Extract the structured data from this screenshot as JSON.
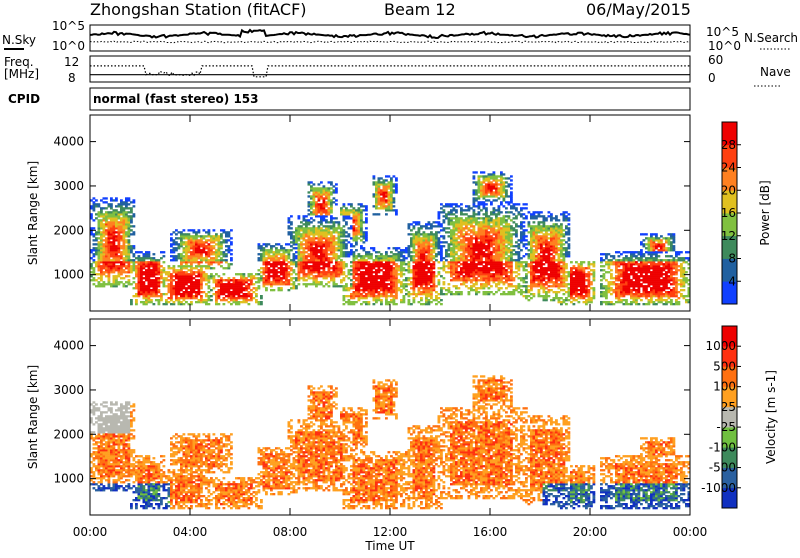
{
  "header": {
    "station": "Zhongshan Station (fitACF)",
    "beam": "Beam 12",
    "date": "06/May/2015"
  },
  "params_panel": {
    "nsky_label": "N.Sky",
    "nsearch_label": "N.Search",
    "noise_ticks_left": [
      "10^5",
      "10^0"
    ],
    "noise_ticks_right": [
      "10^5",
      "10^0"
    ],
    "freq_label_line1": "Freq.",
    "freq_label_line2": "[MHz]",
    "freq_ticks": [
      "12",
      "8"
    ],
    "nave_label": "Nave",
    "nave_ticks": [
      "60",
      "0"
    ],
    "cpid_label": "CPID",
    "cpid_text": "normal (fast stereo) 153"
  },
  "chart_data": [
    {
      "type": "heatmap",
      "name": "power",
      "xlabel": "",
      "ylabel": "Slant Range [km]",
      "x_range_hours": [
        0,
        24
      ],
      "ylim_km": [
        180,
        4600
      ],
      "y_ticks": [
        1000,
        2000,
        3000,
        4000
      ],
      "colorbar_label": "Power [dB]",
      "colorbar_ticks": [
        "4",
        "8",
        "12",
        "16",
        "20",
        "24",
        "28"
      ],
      "colorscale": [
        "#1040ff",
        "#2060a0",
        "#3e8a5c",
        "#80c040",
        "#e0c020",
        "#ff8020",
        "#ff4010",
        "#ee0000"
      ]
    },
    {
      "type": "heatmap",
      "name": "velocity",
      "xlabel": "Time UT",
      "ylabel": "Slant Range [km]",
      "x_range_hours": [
        0,
        24
      ],
      "x_tick_labels": [
        "00:00",
        "04:00",
        "08:00",
        "12:00",
        "16:00",
        "20:00",
        "00:00"
      ],
      "ylim_km": [
        180,
        4600
      ],
      "y_ticks": [
        1000,
        2000,
        3000,
        4000
      ],
      "colorbar_label": "Velocity [m s-1]",
      "colorbar_ticks": [
        "1000",
        "500",
        "100",
        "25",
        "-25",
        "-100",
        "-500",
        "-1000"
      ],
      "colorscale": [
        "#1030c0",
        "#2a60a0",
        "#3e8a5c",
        "#70c040",
        "#b8b8b0",
        "#ffa020",
        "#ff7010",
        "#ff3010",
        "#ee0000"
      ]
    }
  ]
}
